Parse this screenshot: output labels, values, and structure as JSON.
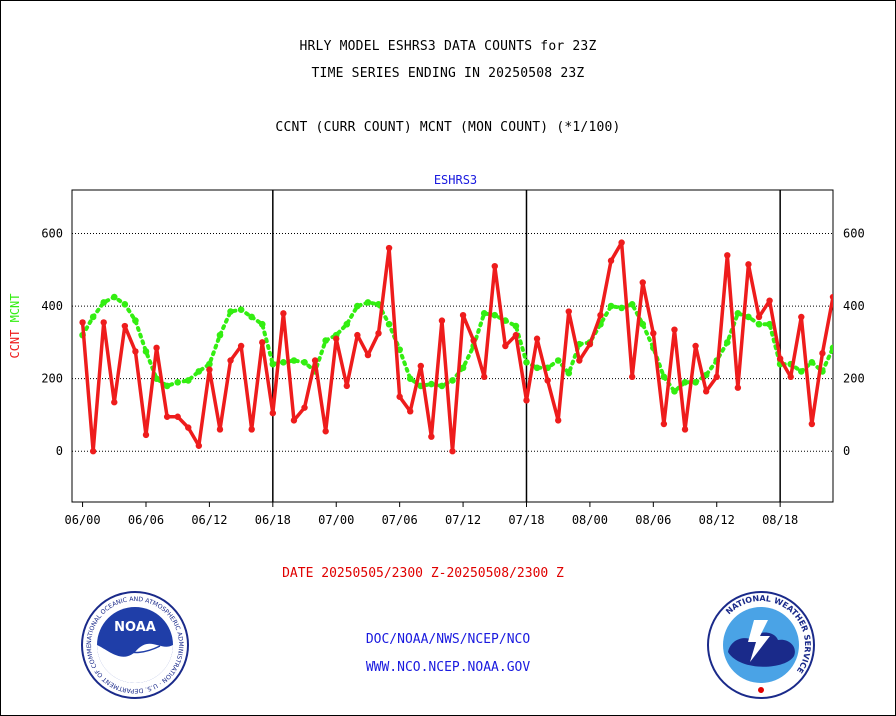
{
  "header": {
    "title_line1": "HRLY MODEL ESHRS3 DATA COUNTS for 23Z",
    "title_line2": "TIME SERIES ENDING IN 20250508 23Z",
    "subtitle": "CCNT (CURR COUNT) MCNT (MON COUNT) (*1/100)"
  },
  "footer": {
    "date_range": "DATE 20250505/2300 Z-20250508/2300 Z",
    "org_path": "DOC/NOAA/NWS/NCEP/NCO",
    "website": "WWW.NCO.NCEP.NOAA.GOV"
  },
  "logos": {
    "noaa_label": "NOAA",
    "noaa_ring_text": "NATIONAL OCEANIC AND ATMOSPHERIC ADMINISTRATION · U.S. DEPARTMENT OF COMMERCE ·",
    "nws_ring_text": "NATIONAL WEATHER SERVICE"
  },
  "colors": {
    "ccnt": "#ee1c1c",
    "mcnt": "#33ee11",
    "axis_text": "#000000",
    "series_label": "#1a1adf",
    "date_text": "#e00000"
  },
  "chart_data": {
    "type": "line",
    "title": "ESHRS3",
    "ylabel_parts": [
      "CCNT",
      "MCNT"
    ],
    "ylim": [
      -140,
      720
    ],
    "xlim": [
      -1,
      71
    ],
    "y_ticks": [
      0,
      200,
      400,
      600
    ],
    "x_ticks": [
      {
        "x": 0,
        "label": "06/00"
      },
      {
        "x": 6,
        "label": "06/06"
      },
      {
        "x": 12,
        "label": "06/12"
      },
      {
        "x": 18,
        "label": "06/18"
      },
      {
        "x": 24,
        "label": "07/00"
      },
      {
        "x": 30,
        "label": "07/06"
      },
      {
        "x": 36,
        "label": "07/12"
      },
      {
        "x": 42,
        "label": "07/18"
      },
      {
        "x": 48,
        "label": "08/00"
      },
      {
        "x": 54,
        "label": "08/06"
      },
      {
        "x": 60,
        "label": "08/12"
      },
      {
        "x": 66,
        "label": "08/18"
      }
    ],
    "day_lines": [
      18,
      42,
      66
    ],
    "grid": "dotted horizontal",
    "series": [
      {
        "name": "CCNT",
        "color": "#ee1c1c",
        "values": [
          355,
          0,
          355,
          135,
          345,
          275,
          45,
          285,
          95,
          95,
          65,
          15,
          225,
          60,
          250,
          290,
          60,
          300,
          105,
          380,
          85,
          120,
          250,
          55,
          310,
          180,
          320,
          265,
          325,
          560,
          150,
          110,
          235,
          40,
          360,
          0,
          375,
          305,
          205,
          510,
          290,
          320,
          140,
          310,
          195,
          85,
          385,
          250,
          295,
          375,
          525,
          575,
          205,
          465,
          325,
          75,
          335,
          60,
          290,
          165,
          205,
          540,
          175,
          515,
          370,
          415,
          255,
          205,
          370,
          75,
          270,
          425,
          275
        ]
      },
      {
        "name": "MCNT",
        "color": "#33ee11",
        "values": [
          320,
          370,
          410,
          425,
          405,
          360,
          275,
          200,
          180,
          190,
          195,
          220,
          240,
          320,
          385,
          390,
          370,
          350,
          240,
          245,
          250,
          245,
          220,
          305,
          320,
          350,
          400,
          410,
          405,
          350,
          280,
          200,
          180,
          185,
          180,
          195,
          230,
          290,
          380,
          375,
          360,
          345,
          245,
          230,
          230,
          250,
          215,
          295,
          300,
          350,
          400,
          395,
          405,
          350,
          285,
          205,
          165,
          190,
          190,
          210,
          250,
          300,
          380,
          370,
          350,
          350,
          240,
          240,
          220,
          245,
          220,
          285,
          300
        ]
      }
    ]
  }
}
